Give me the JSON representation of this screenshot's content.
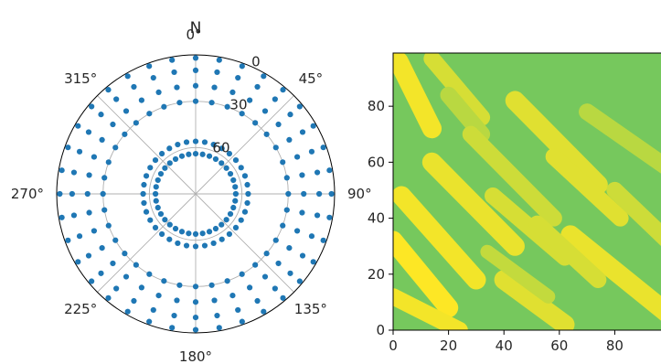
{
  "chart_data": [
    {
      "type": "scatter",
      "projection": "polar",
      "theta_zero_location": "N",
      "theta_direction": "clockwise",
      "r_inverted": true,
      "r_range": [
        90,
        0
      ],
      "r_ticks": [
        "0",
        "30",
        "60"
      ],
      "theta_ticks": [
        "0°",
        "45°",
        "90°",
        "135°",
        "180°",
        "225°",
        "270°",
        "315°"
      ],
      "north_label": "N",
      "grid": true,
      "marker_color": "#1f77b4",
      "points": [
        {
          "az": 0,
          "el": [
            2,
            10,
            20,
            30,
            56,
            64
          ]
        },
        {
          "az": 10,
          "el": [
            2,
            10,
            20,
            30,
            56,
            64
          ]
        },
        {
          "az": 20,
          "el": [
            2,
            10,
            20,
            30,
            56,
            64
          ]
        },
        {
          "az": 30,
          "el": [
            2,
            10,
            20,
            30,
            56,
            64
          ]
        },
        {
          "az": 40,
          "el": [
            2,
            10,
            20,
            30,
            56,
            64
          ]
        },
        {
          "az": 50,
          "el": [
            2,
            10,
            20,
            30,
            56,
            64
          ]
        },
        {
          "az": 60,
          "el": [
            2,
            10,
            20,
            30,
            56,
            64
          ]
        },
        {
          "az": 70,
          "el": [
            2,
            10,
            20,
            30,
            56,
            64
          ]
        },
        {
          "az": 80,
          "el": [
            2,
            10,
            20,
            30,
            56,
            64
          ]
        },
        {
          "az": 90,
          "el": [
            2,
            10,
            20,
            30,
            56,
            64
          ]
        },
        {
          "az": 100,
          "el": [
            2,
            10,
            20,
            30,
            56,
            64
          ]
        },
        {
          "az": 110,
          "el": [
            2,
            10,
            20,
            30,
            56,
            64
          ]
        },
        {
          "az": 120,
          "el": [
            2,
            10,
            20,
            30,
            56,
            64
          ]
        },
        {
          "az": 130,
          "el": [
            2,
            10,
            20,
            30,
            56,
            64
          ]
        },
        {
          "az": 140,
          "el": [
            2,
            10,
            20,
            30,
            56,
            64
          ]
        },
        {
          "az": 150,
          "el": [
            2,
            10,
            20,
            30,
            56,
            64
          ]
        },
        {
          "az": 160,
          "el": [
            2,
            10,
            20,
            30,
            56,
            64
          ]
        },
        {
          "az": 170,
          "el": [
            2,
            10,
            20,
            30,
            56,
            64
          ]
        },
        {
          "az": 180,
          "el": [
            2,
            10,
            20,
            30,
            56,
            64
          ]
        },
        {
          "az": 190,
          "el": [
            2,
            10,
            20,
            30,
            56,
            64
          ]
        },
        {
          "az": 200,
          "el": [
            2,
            10,
            20,
            30,
            56,
            64
          ]
        },
        {
          "az": 210,
          "el": [
            2,
            10,
            20,
            30,
            56,
            64
          ]
        },
        {
          "az": 220,
          "el": [
            2,
            10,
            20,
            30,
            56,
            64
          ]
        },
        {
          "az": 230,
          "el": [
            2,
            10,
            20,
            30,
            56,
            64
          ]
        },
        {
          "az": 240,
          "el": [
            2,
            10,
            20,
            30,
            56,
            64
          ]
        },
        {
          "az": 250,
          "el": [
            2,
            10,
            20,
            30,
            56,
            64
          ]
        },
        {
          "az": 260,
          "el": [
            2,
            10,
            20,
            30,
            56,
            64
          ]
        },
        {
          "az": 270,
          "el": [
            2,
            10,
            20,
            30,
            56,
            64
          ]
        },
        {
          "az": 280,
          "el": [
            2,
            10,
            20,
            30,
            56,
            64
          ]
        },
        {
          "az": 290,
          "el": [
            2,
            10,
            20,
            30,
            56,
            64
          ]
        },
        {
          "az": 300,
          "el": [
            2,
            10,
            20,
            30,
            56,
            64
          ]
        },
        {
          "az": 310,
          "el": [
            2,
            10,
            20,
            30,
            56,
            64
          ]
        },
        {
          "az": 320,
          "el": [
            2,
            10,
            20,
            30,
            56,
            64
          ]
        },
        {
          "az": 330,
          "el": [
            2,
            10,
            20,
            30,
            56,
            64
          ]
        },
        {
          "az": 340,
          "el": [
            2,
            10,
            20,
            30,
            56,
            64
          ]
        },
        {
          "az": 350,
          "el": [
            2,
            10,
            20,
            30,
            56,
            64
          ]
        }
      ]
    },
    {
      "type": "heatmap",
      "colormap": "viridis",
      "color_range": [
        "#3cbb75",
        "#fde725"
      ],
      "xlim": [
        0,
        99
      ],
      "ylim": [
        0,
        99
      ],
      "x_ticks": [
        "0",
        "20",
        "40",
        "60",
        "80"
      ],
      "y_ticks": [
        "0",
        "20",
        "40",
        "60",
        "80"
      ],
      "background_value": 0.3,
      "stripes": [
        {
          "from": [
            2,
            96
          ],
          "to": [
            14,
            72
          ],
          "width": 7,
          "value": 0.95
        },
        {
          "from": [
            14,
            97
          ],
          "to": [
            32,
            76
          ],
          "width": 6,
          "value": 0.8
        },
        {
          "from": [
            20,
            84
          ],
          "to": [
            32,
            70
          ],
          "width": 6,
          "value": 0.65
        },
        {
          "from": [
            44,
            82
          ],
          "to": [
            74,
            52
          ],
          "width": 7,
          "value": 0.85
        },
        {
          "from": [
            28,
            70
          ],
          "to": [
            58,
            40
          ],
          "width": 6,
          "value": 0.75
        },
        {
          "from": [
            14,
            60
          ],
          "to": [
            44,
            30
          ],
          "width": 7,
          "value": 0.9
        },
        {
          "from": [
            3,
            48
          ],
          "to": [
            30,
            18
          ],
          "width": 7,
          "value": 0.95
        },
        {
          "from": [
            0,
            32
          ],
          "to": [
            20,
            8
          ],
          "width": 7,
          "value": 1.0
        },
        {
          "from": [
            36,
            48
          ],
          "to": [
            62,
            26
          ],
          "width": 6,
          "value": 0.8
        },
        {
          "from": [
            58,
            62
          ],
          "to": [
            82,
            40
          ],
          "width": 6,
          "value": 0.85
        },
        {
          "from": [
            70,
            78
          ],
          "to": [
            99,
            58
          ],
          "width": 6,
          "value": 0.65
        },
        {
          "from": [
            64,
            34
          ],
          "to": [
            99,
            6
          ],
          "width": 7,
          "value": 0.9
        },
        {
          "from": [
            40,
            18
          ],
          "to": [
            62,
            2
          ],
          "width": 7,
          "value": 0.85
        },
        {
          "from": [
            52,
            38
          ],
          "to": [
            74,
            18
          ],
          "width": 6,
          "value": 0.8
        },
        {
          "from": [
            0,
            12
          ],
          "to": [
            24,
            0
          ],
          "width": 6,
          "value": 0.95
        },
        {
          "from": [
            80,
            50
          ],
          "to": [
            99,
            32
          ],
          "width": 6,
          "value": 0.75
        },
        {
          "from": [
            34,
            28
          ],
          "to": [
            56,
            12
          ],
          "width": 5,
          "value": 0.7
        }
      ]
    }
  ]
}
